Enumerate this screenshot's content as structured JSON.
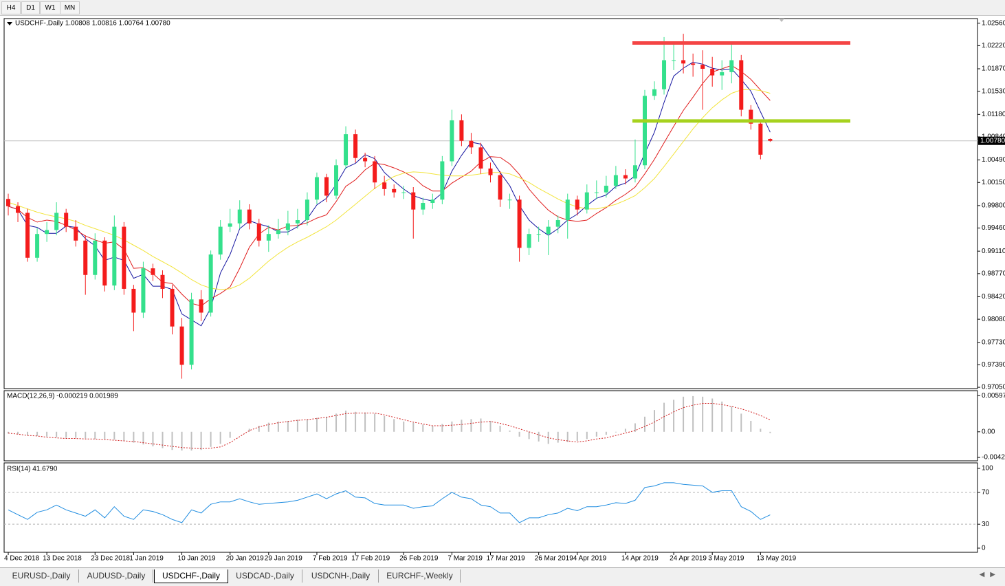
{
  "toolbar": [
    "H4",
    "D1",
    "W1",
    "MN"
  ],
  "tabs": [
    "EURUSD-,Daily",
    "AUDUSD-,Daily",
    "USDCHF-,Daily",
    "USDCAD-,Daily",
    "USDCNH-,Daily",
    "EURCHF-,Weekly"
  ],
  "chart_data": [
    {
      "type": "candlestick",
      "title": "USDCHF-,Daily  1.00808 1.00816 1.00764 1.00780",
      "categories": [
        "4 Dec 2018",
        null,
        null,
        null,
        "13 Dec 2018",
        null,
        null,
        null,
        null,
        "23 Dec 2018",
        null,
        null,
        null,
        "1 Jan 2019",
        null,
        null,
        null,
        null,
        "10 Jan 2019",
        null,
        null,
        null,
        null,
        "20 Jan 2019",
        null,
        null,
        null,
        "29 Jan 2019",
        null,
        null,
        null,
        null,
        "7 Feb 2019",
        null,
        null,
        null,
        "17 Feb 2019",
        null,
        null,
        null,
        null,
        "26 Feb 2019",
        null,
        null,
        null,
        null,
        "7 Mar 2019",
        null,
        null,
        null,
        "17 Mar 2019",
        null,
        null,
        null,
        null,
        "26 Mar 2019",
        null,
        null,
        null,
        "4 Apr 2019",
        null,
        null,
        null,
        null,
        "14 Apr 2019",
        null,
        null,
        null,
        null,
        "24 Apr 2019",
        null,
        null,
        null,
        "3 May 2019",
        null,
        null,
        null,
        null,
        "13 May 2019",
        null
      ],
      "open": [
        0.999,
        0.9979,
        0.9969,
        0.9901,
        0.9937,
        0.9943,
        0.9969,
        0.9948,
        0.9927,
        0.9875,
        0.9927,
        0.9859,
        0.9948,
        0.9854,
        0.9818,
        0.9885,
        0.9875,
        0.9854,
        0.9797,
        0.9739,
        0.9838,
        0.9818,
        0.9906,
        0.9948,
        0.9953,
        0.9974,
        0.9953,
        0.9927,
        0.9937,
        0.9943,
        0.9953,
        0.9958,
        0.9989,
        1.0023,
        0.9995,
        1.0041,
        1.0088,
        1.0052,
        1.0047,
        1.0015,
        1.0005,
        1.0,
        1.0,
        0.9974,
        0.9984,
        0.9989,
        1.0047,
        1.0109,
        1.0078,
        1.0068,
        1.0036,
        1.0026,
        0.9989,
        0.9989,
        0.9916,
        0.9937,
        0.9937,
        0.9948,
        0.9958,
        0.9989,
        0.9974,
        1.0,
        1.0,
        1.001,
        1.0026,
        1.0021,
        1.0041,
        1.0146,
        1.0156,
        1.02,
        1.02,
        1.0195,
        1.0193,
        1.0187,
        1.0177,
        1.0182,
        1.02,
        1.0125,
        1.0104,
        1.00808
      ],
      "high": [
        0.9998,
        0.9985,
        0.9975,
        0.9946,
        0.9955,
        0.9985,
        0.9975,
        0.9958,
        0.9935,
        0.9938,
        0.9932,
        0.9965,
        0.9955,
        0.986,
        0.9895,
        0.9892,
        0.9882,
        0.986,
        0.981,
        0.9848,
        0.9852,
        0.9912,
        0.9958,
        0.9975,
        0.9988,
        0.9982,
        0.996,
        0.995,
        0.996,
        0.9972,
        0.9975,
        1.0,
        1.003,
        1.0028,
        1.005,
        1.01,
        1.0095,
        1.006,
        1.0055,
        1.0025,
        1.0012,
        1.001,
        1.0008,
        0.9992,
        0.9998,
        1.0055,
        1.0125,
        1.0118,
        1.009,
        1.0075,
        1.0045,
        1.0032,
        0.9998,
        0.9995,
        0.9945,
        0.9948,
        0.9958,
        0.9965,
        0.9998,
        0.9995,
        1.0012,
        1.0018,
        1.0025,
        1.004,
        1.0035,
        1.008,
        1.0155,
        1.0168,
        1.0235,
        1.0225,
        1.024,
        1.021,
        1.0215,
        1.0205,
        1.02,
        1.0228,
        1.0208,
        1.0132,
        1.011,
        1.00816
      ],
      "low": [
        0.9965,
        0.9955,
        0.9895,
        0.9895,
        0.9925,
        0.9935,
        0.994,
        0.9918,
        0.9845,
        0.9868,
        0.985,
        0.9852,
        0.9845,
        0.979,
        0.981,
        0.9866,
        0.984,
        0.9785,
        0.9718,
        0.9732,
        0.9805,
        0.9812,
        0.9898,
        0.994,
        0.9945,
        0.9944,
        0.9918,
        0.991,
        0.993,
        0.9935,
        0.9945,
        0.995,
        0.9982,
        0.9985,
        0.999,
        1.0035,
        1.0045,
        1.0038,
        1.0005,
        0.9995,
        0.9992,
        0.999,
        0.993,
        0.9966,
        0.9975,
        0.9982,
        1.004,
        1.007,
        1.0058,
        1.0028,
        1.0015,
        0.9978,
        0.9975,
        0.9895,
        0.9905,
        0.9925,
        0.9905,
        0.9938,
        0.993,
        0.9965,
        0.9968,
        0.999,
        0.9992,
        1.0005,
        1.0012,
        1.0015,
        1.0035,
        1.014,
        1.0148,
        1.0185,
        1.018,
        1.0175,
        1.0125,
        1.016,
        1.0155,
        1.0165,
        1.0115,
        1.0095,
        1.005,
        1.00764
      ],
      "close": [
        0.9979,
        0.9969,
        0.9901,
        0.9937,
        0.9943,
        0.9969,
        0.9948,
        0.9927,
        0.9875,
        0.9927,
        0.9859,
        0.9948,
        0.9854,
        0.9818,
        0.9885,
        0.9875,
        0.9854,
        0.9797,
        0.9739,
        0.9838,
        0.9818,
        0.9906,
        0.9948,
        0.9953,
        0.9974,
        0.9953,
        0.9927,
        0.9937,
        0.9943,
        0.9953,
        0.9958,
        0.9989,
        1.0023,
        0.9995,
        1.0041,
        1.0088,
        1.0052,
        1.0047,
        1.0015,
        1.0005,
        1.0,
        1.0,
        0.9974,
        0.9984,
        0.9989,
        1.0047,
        1.0109,
        1.0078,
        1.0068,
        1.0036,
        1.0026,
        0.9989,
        0.9989,
        0.9916,
        0.9937,
        0.9937,
        0.9948,
        0.9958,
        0.9989,
        0.9974,
        1.0,
        1.0,
        1.001,
        1.0026,
        1.0021,
        1.0041,
        1.0146,
        1.0156,
        1.02,
        1.02,
        1.0195,
        1.0193,
        1.0187,
        1.0177,
        1.0182,
        1.02,
        1.0125,
        1.0104,
        1.0057,
        1.0078
      ],
      "up_color": "#34e08c",
      "down_color": "#f41c1c",
      "series": [
        {
          "color": "#1414a0",
          "values": [
            0.9979,
            0.9974,
            0.995,
            0.9947,
            0.9938,
            0.9938,
            0.9949,
            0.9947,
            0.993,
            0.9919,
            0.9897,
            0.9902,
            0.9897,
            0.987,
            0.9876,
            0.9858,
            0.9858,
            0.9853,
            0.9816,
            0.9807,
            0.9798,
            0.9825,
            0.9878,
            0.9906,
            0.9945,
            0.9957,
            0.9952,
            0.9948,
            0.994,
            0.994,
            0.9948,
            0.996,
            0.9981,
            0.9991,
            1.0012,
            1.0037,
            1.0044,
            1.0057,
            1.0051,
            1.003,
            1.0017,
            1.0005,
            0.9995,
            0.999,
            0.9987,
            0.9999,
            1.0032,
            1.0056,
            1.0076,
            1.0073,
            1.0052,
            1.003,
            1.001,
            0.998,
            0.9958,
            0.9945,
            0.9935,
            0.9945,
            0.9958,
            0.9967,
            0.998,
            0.9991,
            0.9996,
            1.0009,
            1.0014,
            1.0025,
            1.0059,
            1.0091,
            1.0136,
            1.0176,
            1.0188,
            1.0197,
            1.0194,
            1.0188,
            1.0185,
            1.0187,
            1.0171,
            1.0153,
            1.0122,
            1.0091
          ]
        },
        {
          "color": "#e01c1c",
          "values": [
            0.9979,
            0.9974,
            0.9962,
            0.9955,
            0.9958,
            0.9956,
            0.995,
            0.9943,
            0.9934,
            0.9928,
            0.9923,
            0.9925,
            0.9914,
            0.9885,
            0.9886,
            0.9877,
            0.9864,
            0.9862,
            0.9846,
            0.9832,
            0.9828,
            0.9839,
            0.9847,
            0.9857,
            0.9885,
            0.9917,
            0.9937,
            0.9947,
            0.9943,
            0.9949,
            0.995,
            0.9954,
            0.9961,
            0.9966,
            0.9986,
            1.0009,
            1.0019,
            1.0034,
            1.0044,
            1.0042,
            1.0037,
            1.0031,
            1.0023,
            1.001,
            1.0002,
            1.0002,
            1.0014,
            1.0023,
            1.0032,
            1.0046,
            1.0054,
            1.0053,
            1.0043,
            1.0027,
            1.0005,
            0.9988,
            0.9973,
            0.9963,
            0.9958,
            0.9956,
            0.9958,
            0.9968,
            0.9977,
            0.9988,
            0.9997,
            1.0008,
            1.0028,
            1.005,
            1.0075,
            1.01,
            1.0124,
            1.0144,
            1.0165,
            1.0182,
            1.0187,
            1.0192,
            1.0183,
            1.0171,
            1.0155,
            1.0139
          ]
        },
        {
          "color": "#f2e43a",
          "values": [
            0.9985,
            0.998,
            0.9975,
            0.997,
            0.9966,
            0.9963,
            0.996,
            0.9956,
            0.995,
            0.9945,
            0.994,
            0.9935,
            0.9928,
            0.992,
            0.9912,
            0.9903,
            0.9895,
            0.9887,
            0.9878,
            0.9868,
            0.986,
            0.9855,
            0.9853,
            0.9854,
            0.986,
            0.987,
            0.9883,
            0.9896,
            0.9907,
            0.9917,
            0.9925,
            0.9932,
            0.994,
            0.9948,
            0.9958,
            0.997,
            0.9982,
            0.9994,
            1.0006,
            1.0016,
            1.0024,
            1.0029,
            1.0031,
            1.003,
            1.0028,
            1.0026,
            1.0025,
            1.0025,
            1.0026,
            1.0028,
            1.003,
            1.003,
            1.0028,
            1.0022,
            1.0015,
            1.0006,
            0.9998,
            0.999,
            0.9983,
            0.9978,
            0.9975,
            0.9975,
            0.9978,
            0.9982,
            0.9988,
            0.9995,
            1.0007,
            1.0021,
            1.0039,
            1.0058,
            1.0077,
            1.0096,
            1.0113,
            1.0128,
            1.014,
            1.015,
            1.0155,
            1.0156,
            1.0154,
            1.015
          ]
        }
      ],
      "levels": [
        {
          "value": 1.0226,
          "color": "#f44444"
        },
        {
          "value": 1.0108,
          "color": "#a6d21e"
        }
      ],
      "current_price": {
        "value": 1.0078,
        "label": "1.00780"
      },
      "ylim": [
        0.9703,
        1.0263
      ],
      "yticks": [
        {
          "value": 1.0256,
          "label": "1.02560"
        },
        {
          "value": 1.0222,
          "label": "1.02220"
        },
        {
          "value": 1.0187,
          "label": "1.01870"
        },
        {
          "value": 1.0153,
          "label": "1.01530"
        },
        {
          "value": 1.0118,
          "label": "1.01180"
        },
        {
          "value": 1.0084,
          "label": "1.00840"
        },
        {
          "value": 1.0049,
          "label": "1.00490"
        },
        {
          "value": 1.0015,
          "label": "1.00150"
        },
        {
          "value": 0.998,
          "label": "0.99800"
        },
        {
          "value": 0.9946,
          "label": "0.99460"
        },
        {
          "value": 0.9911,
          "label": "0.99110"
        },
        {
          "value": 0.9877,
          "label": "0.98770"
        },
        {
          "value": 0.9842,
          "label": "0.98420"
        },
        {
          "value": 0.9808,
          "label": "0.98080"
        },
        {
          "value": 0.9773,
          "label": "0.97730"
        },
        {
          "value": 0.9739,
          "label": "0.97390"
        },
        {
          "value": 0.9705,
          "label": "0.97050"
        }
      ]
    },
    {
      "type": "macd",
      "title": "MACD(12,26,9) -0.000219 0.001989",
      "values": [
        -0.0003,
        -0.0004,
        -0.0006,
        -0.0007,
        -0.0008,
        -0.0009,
        -0.001,
        -0.001,
        -0.0011,
        -0.0012,
        -0.0012,
        -0.0013,
        -0.0015,
        -0.0018,
        -0.0021,
        -0.0024,
        -0.0027,
        -0.003,
        -0.0031,
        -0.0031,
        -0.003,
        -0.0025,
        -0.002,
        -0.001,
        0,
        0.0005,
        0.001,
        0.0015,
        0.0017,
        0.0018,
        0.002,
        0.0021,
        0.0023,
        0.0025,
        0.003,
        0.0035,
        0.0033,
        0.0032,
        0.003,
        0.0026,
        0.0021,
        0.0017,
        0.0015,
        0.0012,
        0.001,
        0.0013,
        0.0017,
        0.002,
        0.0021,
        0.0022,
        0.0018,
        0.001,
        0.0002,
        -0.0008,
        -0.0012,
        -0.0016,
        -0.002,
        -0.0018,
        -0.0017,
        -0.0015,
        -0.0012,
        -0.0008,
        -0.0005,
        -0.0001,
        0.0005,
        0.0014,
        0.0025,
        0.0036,
        0.0048,
        0.0053,
        0.0058,
        0.0059,
        0.0058,
        0.0055,
        0.005,
        0.0042,
        0.003,
        0.0018,
        0.0005,
        -0.000219
      ],
      "color": "#c0c0c0",
      "signal": [
        -0.0002,
        -0.0004,
        -0.0006,
        -0.0007,
        -0.0009,
        -0.001,
        -0.0011,
        -0.0011,
        -0.0012,
        -0.0012,
        -0.0013,
        -0.0014,
        -0.0015,
        -0.0016,
        -0.0018,
        -0.002,
        -0.0022,
        -0.0024,
        -0.0026,
        -0.0027,
        -0.0028,
        -0.0027,
        -0.0025,
        -0.0018,
        -0.0008,
        0.0002,
        0.0008,
        0.0012,
        0.0015,
        0.0017,
        0.0019,
        0.002,
        0.0022,
        0.0024,
        0.0027,
        0.003,
        0.0031,
        0.0031,
        0.0031,
        0.0028,
        0.0024,
        0.002,
        0.0016,
        0.0013,
        0.001,
        0.001,
        0.0011,
        0.0012,
        0.0014,
        0.0016,
        0.0017,
        0.0014,
        0.001,
        0.0005,
        0,
        -0.0005,
        -0.001,
        -0.0013,
        -0.0015,
        -0.0017,
        -0.0015,
        -0.0012,
        -0.001,
        -0.0006,
        -0.0002,
        0.0002,
        0.0009,
        0.0016,
        0.0025,
        0.0033,
        0.004,
        0.0044,
        0.0047,
        0.0047,
        0.0045,
        0.0042,
        0.0038,
        0.0033,
        0.0027,
        0.001989
      ],
      "signal_color": "#d01c1c",
      "ylim": [
        -0.0048,
        0.0068
      ],
      "yticks": [
        0.00597,
        {
          "value": 0,
          "label": "0.00"
        },
        -0.00424
      ]
    },
    {
      "type": "rsi",
      "title": "RSI(14) 41.6790",
      "values": [
        48,
        42,
        36,
        45,
        48,
        54,
        48,
        44,
        40,
        48,
        38,
        52,
        40,
        36,
        48,
        46,
        42,
        36,
        32,
        48,
        44,
        55,
        58,
        58,
        62,
        58,
        55,
        56,
        57,
        58,
        60,
        64,
        68,
        62,
        68,
        72,
        64,
        63,
        56,
        54,
        54,
        54,
        50,
        52,
        53,
        62,
        70,
        64,
        62,
        54,
        52,
        44,
        44,
        32,
        38,
        38,
        42,
        44,
        50,
        47,
        52,
        52,
        54,
        57,
        56,
        60,
        76,
        78,
        82,
        82,
        80,
        79,
        78,
        70,
        72,
        72,
        52,
        46,
        36,
        41.679
      ],
      "color": "#1e8ce0",
      "levels": [
        70,
        30
      ],
      "ylim": [
        -5.2,
        106.9
      ],
      "yticks": [
        100,
        70,
        30,
        0
      ]
    }
  ]
}
